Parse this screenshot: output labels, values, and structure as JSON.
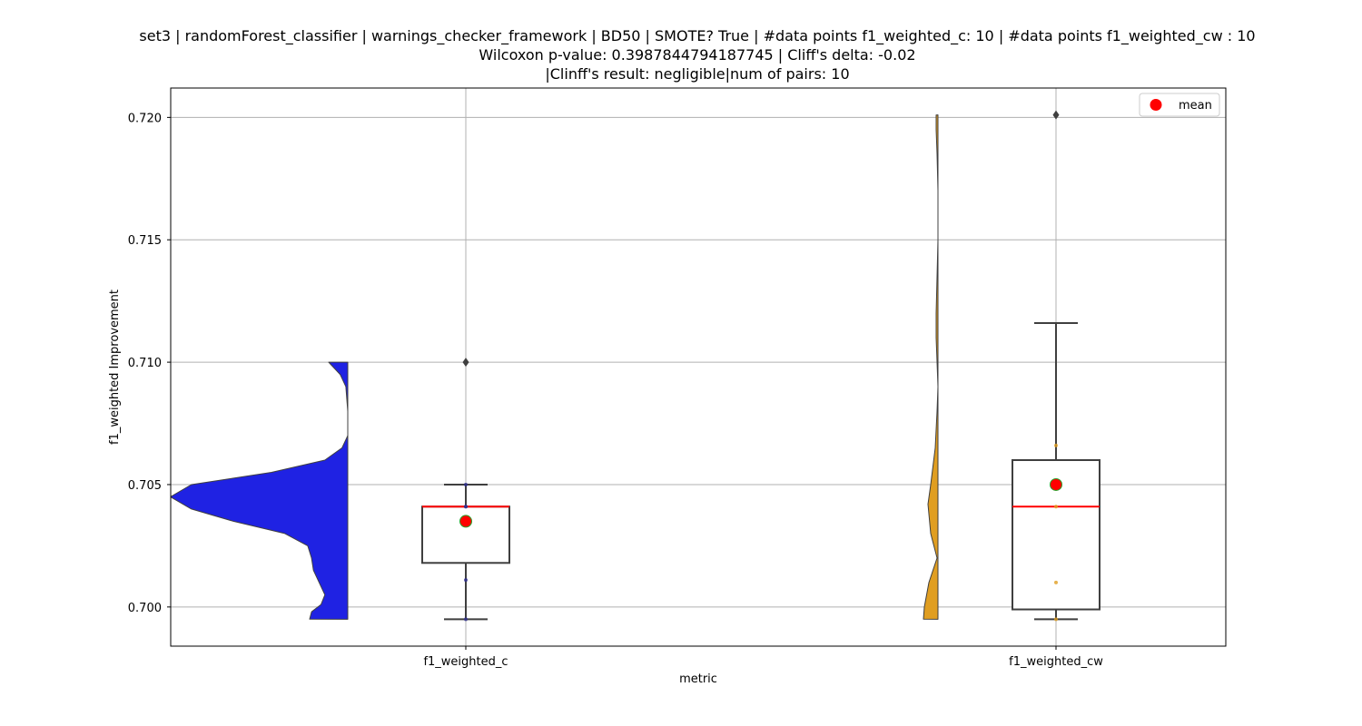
{
  "title": {
    "line1": "set3 | randomForest_classifier | warnings_checker_framework | BD50 | SMOTE? True | #data points f1_weighted_c: 10 | #data points f1_weighted_cw : 10",
    "line2": "Wilcoxon p-value: 0.3987844794187745 | Cliff's delta: -0.02",
    "line3": "|Clinff's result: negligible|num of pairs: 10"
  },
  "chart_data": {
    "type": "violin+box",
    "xlabel": "metric",
    "ylabel": "f1_weighted Improvement",
    "categories": [
      "f1_weighted_c",
      "f1_weighted_cw"
    ],
    "ylim": [
      0.6984,
      0.7212
    ],
    "yticks": [
      0.7,
      0.705,
      0.71,
      0.715,
      0.72
    ],
    "ytick_labels": [
      "0.700",
      "0.705",
      "0.710",
      "0.715",
      "0.720"
    ],
    "grid": true,
    "legend": {
      "placement": "top-right",
      "entries": [
        {
          "label": "mean",
          "color": "#ff0000",
          "marker": "circle"
        }
      ]
    },
    "series": [
      {
        "category": "f1_weighted_c",
        "violin_color": "#1f22e3",
        "box": {
          "whisker_low": 0.6995,
          "q1": 0.7018,
          "median": 0.7041,
          "q3": 0.7041,
          "whisker_high": 0.705,
          "mean": 0.7035
        },
        "outliers": [
          0.71
        ],
        "points": [
          0.6995,
          0.7011,
          0.7041,
          0.7041,
          0.705
        ],
        "density": [
          [
            0.6995,
            0.2
          ],
          [
            0.6998,
            0.19
          ],
          [
            0.7001,
            0.14
          ],
          [
            0.7005,
            0.12
          ],
          [
            0.701,
            0.15
          ],
          [
            0.7015,
            0.18
          ],
          [
            0.702,
            0.19
          ],
          [
            0.7025,
            0.21
          ],
          [
            0.703,
            0.33
          ],
          [
            0.7035,
            0.6
          ],
          [
            0.704,
            0.82
          ],
          [
            0.7045,
            0.93
          ],
          [
            0.705,
            0.82
          ],
          [
            0.7055,
            0.4
          ],
          [
            0.706,
            0.12
          ],
          [
            0.7065,
            0.03
          ],
          [
            0.707,
            0.0
          ],
          [
            0.708,
            0.0
          ],
          [
            0.709,
            0.01
          ],
          [
            0.7095,
            0.04
          ],
          [
            0.71,
            0.1
          ]
        ]
      },
      {
        "category": "f1_weighted_cw",
        "violin_color": "#e09e21",
        "box": {
          "whisker_low": 0.6995,
          "q1": 0.6999,
          "median": 0.7041,
          "q3": 0.706,
          "whisker_high": 0.7116,
          "mean": 0.705
        },
        "outliers": [
          0.7201
        ],
        "points": [
          0.6995,
          0.701,
          0.7041,
          0.7066
        ],
        "density": [
          [
            0.6995,
            0.16
          ],
          [
            0.7,
            0.15
          ],
          [
            0.701,
            0.1
          ],
          [
            0.702,
            0.01
          ],
          [
            0.703,
            0.08
          ],
          [
            0.7042,
            0.11
          ],
          [
            0.705,
            0.08
          ],
          [
            0.7065,
            0.03
          ],
          [
            0.708,
            0.01
          ],
          [
            0.709,
            0.0
          ],
          [
            0.71,
            0.01
          ],
          [
            0.711,
            0.02
          ],
          [
            0.712,
            0.02
          ],
          [
            0.7135,
            0.01
          ],
          [
            0.715,
            0.0
          ],
          [
            0.717,
            0.0
          ],
          [
            0.7185,
            0.01
          ],
          [
            0.7195,
            0.02
          ],
          [
            0.7201,
            0.02
          ]
        ]
      }
    ]
  }
}
